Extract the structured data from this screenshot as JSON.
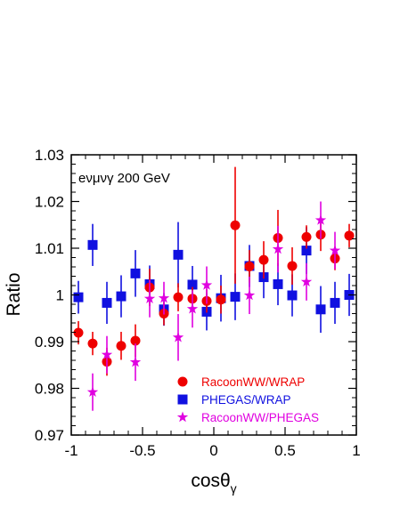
{
  "chart_data": {
    "type": "scatter",
    "annotation": "eνμνγ   200 GeV",
    "xlabel": "cosθ",
    "xlabel_sub": "γ",
    "ylabel": "Ratio",
    "xlim": [
      -1,
      1
    ],
    "ylim": [
      0.97,
      1.03
    ],
    "xticks": [
      {
        "value": -1,
        "label": "-1"
      },
      {
        "value": -0.5,
        "label": "-0.5"
      },
      {
        "value": 0,
        "label": "0"
      },
      {
        "value": 0.5,
        "label": "0.5"
      },
      {
        "value": 1,
        "label": "1"
      }
    ],
    "yticks": [
      {
        "value": 0.97,
        "label": "0.97"
      },
      {
        "value": 0.98,
        "label": "0.98"
      },
      {
        "value": 0.99,
        "label": "0.99"
      },
      {
        "value": 1.0,
        "label": "1"
      },
      {
        "value": 1.01,
        "label": "1.01"
      },
      {
        "value": 1.02,
        "label": "1.02"
      },
      {
        "value": 1.03,
        "label": "1.03"
      }
    ],
    "grid": false,
    "legend_position": "bottom-right",
    "series": [
      {
        "name": "RacoonWW/WRAP",
        "marker": "circle",
        "color": "#ee0000",
        "points": [
          {
            "x": -0.95,
            "y": 0.9919,
            "err": 0.0025
          },
          {
            "x": -0.85,
            "y": 0.9896,
            "err": 0.0025
          },
          {
            "x": -0.75,
            "y": 0.9857,
            "err": 0.003
          },
          {
            "x": -0.65,
            "y": 0.9891,
            "err": 0.003
          },
          {
            "x": -0.55,
            "y": 0.9902,
            "err": 0.0035
          },
          {
            "x": -0.45,
            "y": 1.0016,
            "err": 0.004
          },
          {
            "x": -0.35,
            "y": 0.996,
            "err": 0.0025
          },
          {
            "x": -0.25,
            "y": 0.9995,
            "err": 0.003
          },
          {
            "x": -0.15,
            "y": 0.9992,
            "err": 0.0025
          },
          {
            "x": -0.05,
            "y": 0.9987,
            "err": 0.0025
          },
          {
            "x": 0.05,
            "y": 0.999,
            "err": 0.003
          },
          {
            "x": 0.15,
            "y": 1.0149,
            "err": 0.0125
          },
          {
            "x": 0.25,
            "y": 1.0061,
            "err": 0.0035
          },
          {
            "x": 0.35,
            "y": 1.0075,
            "err": 0.004
          },
          {
            "x": 0.45,
            "y": 1.0122,
            "err": 0.006
          },
          {
            "x": 0.55,
            "y": 1.0062,
            "err": 0.004
          },
          {
            "x": 0.65,
            "y": 1.0124,
            "err": 0.0025
          },
          {
            "x": 0.75,
            "y": 1.0129,
            "err": 0.0035
          },
          {
            "x": 0.85,
            "y": 1.0078,
            "err": 0.0025
          },
          {
            "x": 0.95,
            "y": 1.0127,
            "err": 0.0025
          }
        ]
      },
      {
        "name": "PHEGAS/WRAP",
        "marker": "square",
        "color": "#1010e0",
        "points": [
          {
            "x": -0.95,
            "y": 0.9995,
            "err": 0.0035
          },
          {
            "x": -0.85,
            "y": 1.0107,
            "err": 0.0045
          },
          {
            "x": -0.75,
            "y": 0.9983,
            "err": 0.0045
          },
          {
            "x": -0.65,
            "y": 0.9997,
            "err": 0.0045
          },
          {
            "x": -0.55,
            "y": 1.0046,
            "err": 0.005
          },
          {
            "x": -0.45,
            "y": 1.0023,
            "err": 0.004
          },
          {
            "x": -0.35,
            "y": 0.9969,
            "err": 0.0035
          },
          {
            "x": -0.25,
            "y": 1.0086,
            "err": 0.007
          },
          {
            "x": -0.15,
            "y": 1.0022,
            "err": 0.004
          },
          {
            "x": -0.05,
            "y": 0.9964,
            "err": 0.004
          },
          {
            "x": 0.05,
            "y": 0.9993,
            "err": 0.005
          },
          {
            "x": 0.15,
            "y": 0.9996,
            "err": 0.005
          },
          {
            "x": 0.25,
            "y": 1.0062,
            "err": 0.0045
          },
          {
            "x": 0.35,
            "y": 1.0038,
            "err": 0.0045
          },
          {
            "x": 0.45,
            "y": 1.0023,
            "err": 0.0045
          },
          {
            "x": 0.55,
            "y": 0.9999,
            "err": 0.0045
          },
          {
            "x": 0.65,
            "y": 1.0095,
            "err": 0.005
          },
          {
            "x": 0.75,
            "y": 0.9969,
            "err": 0.005
          },
          {
            "x": 0.85,
            "y": 0.9983,
            "err": 0.0045
          },
          {
            "x": 0.95,
            "y": 1.0,
            "err": 0.0045
          }
        ]
      },
      {
        "name": "RacoonWW/PHEGAS",
        "marker": "star",
        "color": "#e000e0",
        "points": [
          {
            "x": -0.85,
            "y": 0.9792,
            "err": 0.004
          },
          {
            "x": -0.75,
            "y": 0.9872,
            "err": 0.004
          },
          {
            "x": -0.55,
            "y": 0.9856,
            "err": 0.004
          },
          {
            "x": -0.45,
            "y": 0.9992,
            "err": 0.004
          },
          {
            "x": -0.35,
            "y": 0.9993,
            "err": 0.0035
          },
          {
            "x": -0.25,
            "y": 0.9909,
            "err": 0.005
          },
          {
            "x": -0.15,
            "y": 0.997,
            "err": 0.004
          },
          {
            "x": -0.05,
            "y": 1.0021,
            "err": 0.004
          },
          {
            "x": 0.25,
            "y": 0.9999,
            "err": 0.004
          },
          {
            "x": 0.45,
            "y": 1.0098,
            "err": 0.005
          },
          {
            "x": 0.65,
            "y": 1.0028,
            "err": 0.004
          },
          {
            "x": 0.75,
            "y": 1.016,
            "err": 0.004
          },
          {
            "x": 0.85,
            "y": 1.0095,
            "err": 0.004
          }
        ]
      }
    ]
  }
}
